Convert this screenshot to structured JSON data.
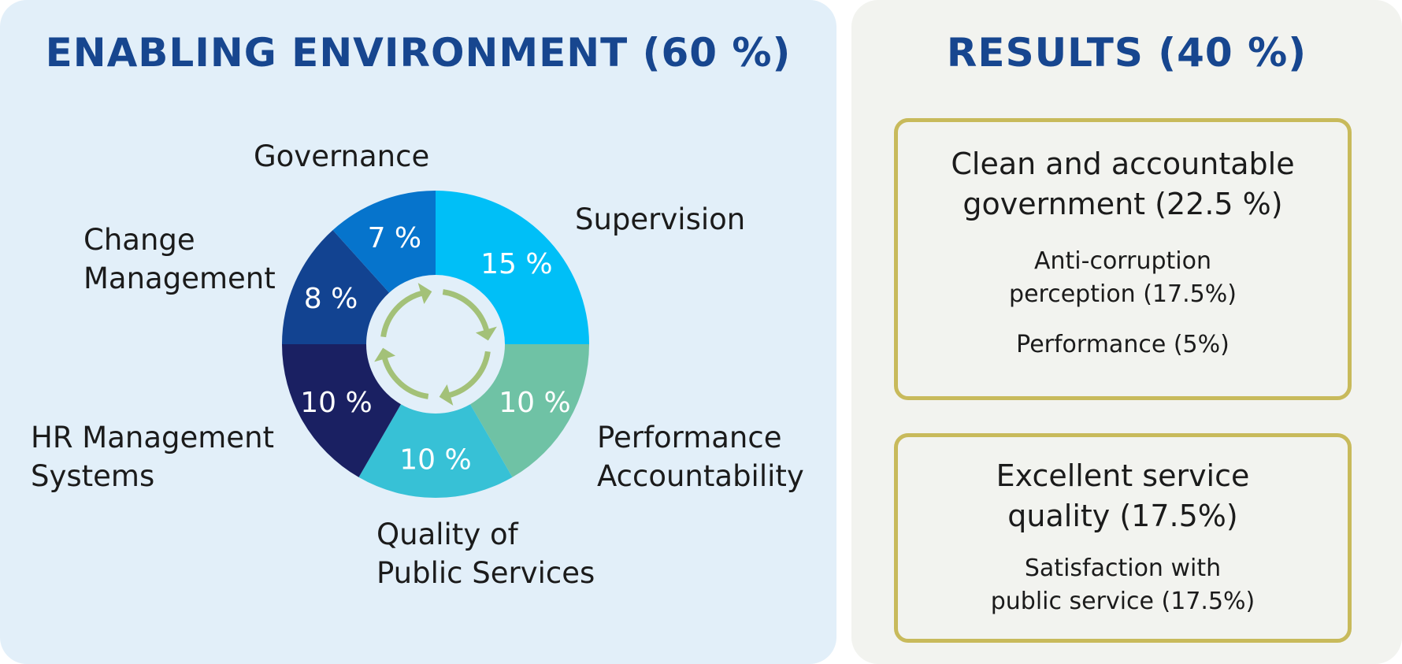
{
  "enabling": {
    "title": "ENABLING ENVIRONMENT (60 %)"
  },
  "results": {
    "title": "RESULTS (40 %)",
    "boxes": [
      {
        "heading_line1": "Clean and accountable",
        "heading_line2": "government (22.5 %)",
        "items": [
          {
            "line1": "Anti-corruption",
            "line2": "perception (17.5%)"
          },
          {
            "line1": "Performance (5%)",
            "line2": ""
          }
        ]
      },
      {
        "heading_line1": "Excellent service",
        "heading_line2": "quality (17.5%)",
        "items": [
          {
            "line1": "Satisfaction with",
            "line2": "public service (17.5%)"
          }
        ]
      }
    ]
  },
  "colors": {
    "title": "#17468f",
    "left_bg": "#e2eff9",
    "right_bg": "#f2f3ef",
    "box_border": "#c8ba5b",
    "arrows": "#a3c178"
  },
  "chart_data": {
    "type": "pie",
    "title": "ENABLING ENVIRONMENT (60 %)",
    "donut": true,
    "slices": [
      {
        "name": "Supervision",
        "name_lines": [
          "Supervision"
        ],
        "value": 15,
        "label": "15 %",
        "color": "#00bff7"
      },
      {
        "name": "Performance Accountability",
        "name_lines": [
          "Performance",
          "Accountability"
        ],
        "value": 10,
        "label": "10 %",
        "color": "#6fc2a5"
      },
      {
        "name": "Quality of Public Services",
        "name_lines": [
          "Quality of",
          "Public Services"
        ],
        "value": 10,
        "label": "10 %",
        "color": "#37c1d6"
      },
      {
        "name": "HR Management Systems",
        "name_lines": [
          "HR Management",
          "Systems"
        ],
        "value": 10,
        "label": "10 %",
        "color": "#1a2062"
      },
      {
        "name": "Change Management",
        "name_lines": [
          "Change",
          "Management"
        ],
        "value": 8,
        "label": "8 %",
        "color": "#124391"
      },
      {
        "name": "Governance",
        "name_lines": [
          "Governance"
        ],
        "value": 7,
        "label": "7 %",
        "color": "#0674cc"
      }
    ]
  }
}
